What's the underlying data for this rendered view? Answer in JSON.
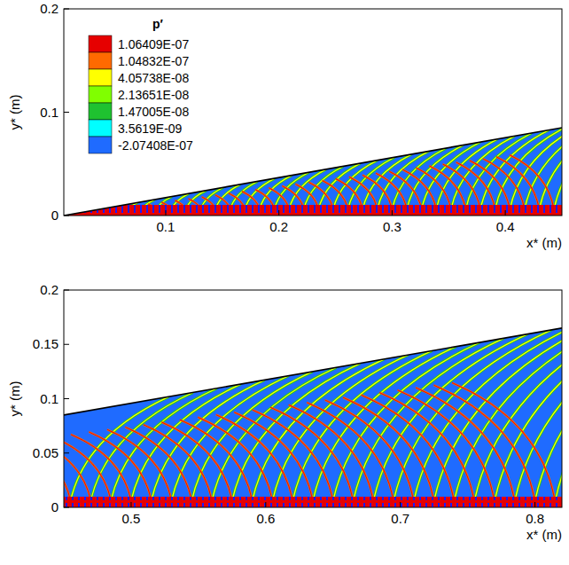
{
  "chart_data": [
    {
      "type": "contour",
      "x_label": "x* (m)",
      "y_label": "y* (m)",
      "xlim": [
        0.01,
        0.45
      ],
      "ylim": [
        0,
        0.2
      ],
      "xticks": [
        0.1,
        0.2,
        0.3,
        0.4
      ],
      "yticks": [
        0,
        0.1,
        0.2
      ],
      "colorbar_title": "p′",
      "levels": [
        {
          "value": 1.06409e-07,
          "label": "1.06409E-07"
        },
        {
          "value": 1.04832e-07,
          "label": "1.04832E-07"
        },
        {
          "value": 4.05738e-08,
          "label": "4.05738E-08"
        },
        {
          "value": 2.13651e-08,
          "label": "2.13651E-08"
        },
        {
          "value": 1.47005e-08,
          "label": "1.47005E-08"
        },
        {
          "value": 3.5619e-09,
          "label": "3.5619E-09"
        },
        {
          "value": -2.07408e-07,
          "label": "-2.07408E-07"
        }
      ],
      "level_colors": [
        "#e60000",
        "#ff6a00",
        "#ffff00",
        "#80ff00",
        "#1fc230",
        "#00ffff",
        "#1f6bff"
      ],
      "wall": {
        "x": [
          0.01,
          0.45
        ],
        "y": [
          0,
          0.085
        ]
      },
      "fronts_x": [
        0.04,
        0.053,
        0.066,
        0.079,
        0.092,
        0.105,
        0.118,
        0.131,
        0.144,
        0.157,
        0.17,
        0.183,
        0.196,
        0.209,
        0.222,
        0.235,
        0.248,
        0.261,
        0.274,
        0.287,
        0.3,
        0.313,
        0.326,
        0.339,
        0.352,
        0.365,
        0.378,
        0.391,
        0.404,
        0.417,
        0.43,
        0.443
      ]
    },
    {
      "type": "contour",
      "x_label": "x* (m)",
      "y_label": "y* (m)",
      "xlim": [
        0.45,
        0.82
      ],
      "ylim": [
        0,
        0.2
      ],
      "xticks": [
        0.5,
        0.6,
        0.7,
        0.8
      ],
      "yticks": [
        0,
        0.05,
        0.1,
        0.15,
        0.2
      ],
      "wall": {
        "x": [
          0.45,
          0.82
        ],
        "y": [
          0.085,
          0.165
        ]
      },
      "fronts_x": [
        0.455,
        0.47,
        0.485,
        0.5,
        0.515,
        0.53,
        0.545,
        0.56,
        0.575,
        0.59,
        0.605,
        0.62,
        0.635,
        0.65,
        0.665,
        0.68,
        0.695,
        0.71,
        0.725,
        0.74,
        0.755,
        0.77,
        0.785,
        0.8,
        0.815
      ]
    }
  ]
}
